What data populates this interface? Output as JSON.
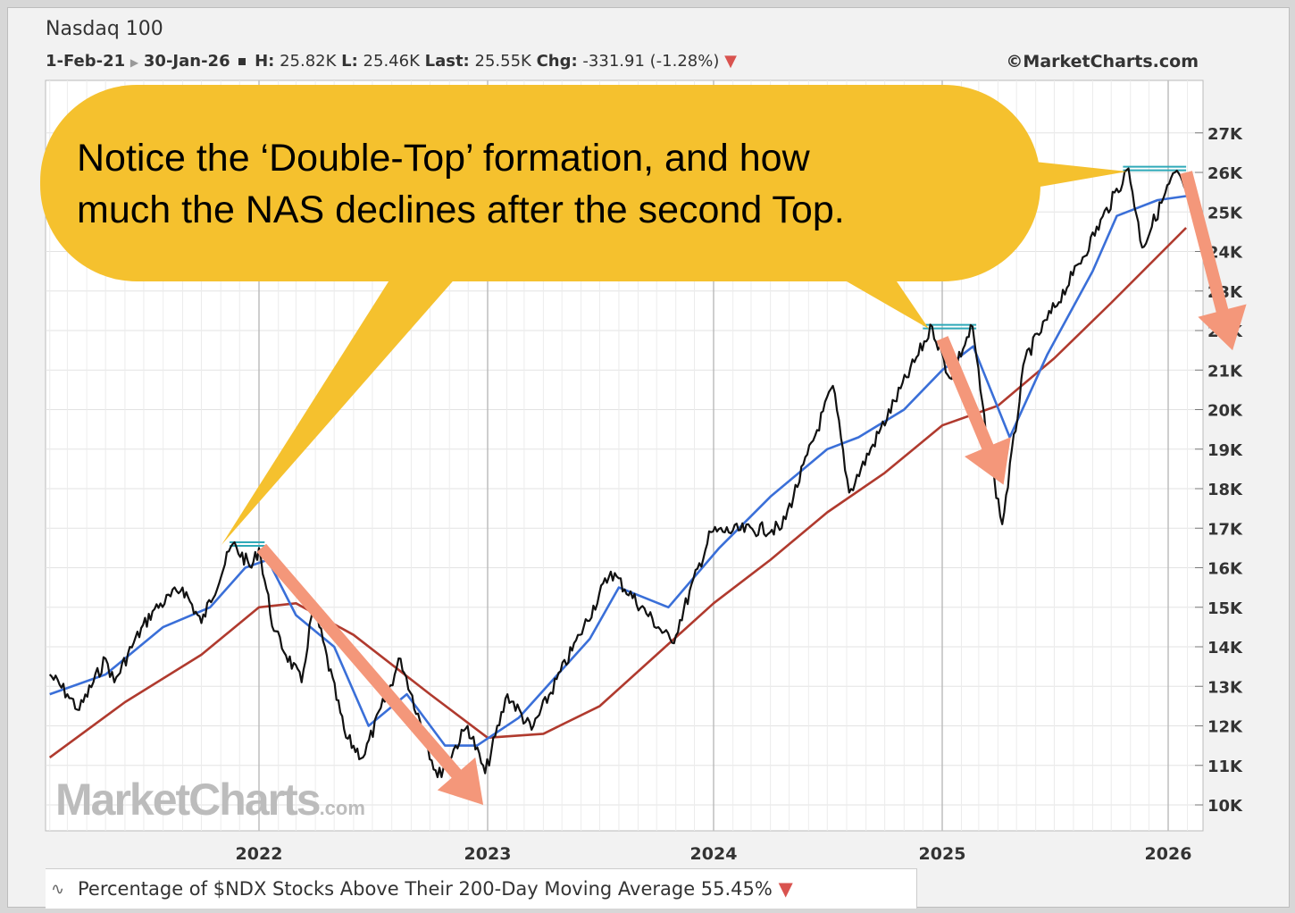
{
  "header": {
    "title": "Nasdaq 100",
    "date_start": "1-Feb-21",
    "date_end": "30-Jan-26",
    "high_label": "H:",
    "high_value": "25.82K",
    "low_label": "L:",
    "low_value": "25.46K",
    "last_label": "Last:",
    "last_value": "25.55K",
    "chg_label": "Chg:",
    "chg_value": "-331.91 (-1.28%)",
    "copyright": "©MarketCharts.com"
  },
  "callout": {
    "line1": "Notice the ‘Double-Top’ formation, and how",
    "line2": "much the NAS declines after the second Top."
  },
  "watermark": {
    "main": "MarketCharts",
    "suffix": ".com"
  },
  "footer": {
    "indicator": "Percentage of $NDX Stocks Above Their 200-Day Moving Average 55.45%"
  },
  "colors": {
    "price": "#111111",
    "ma_short": "#3a6fd8",
    "ma_long": "#b03a2e",
    "arrow": "#f4977a",
    "callout": "#f5c12e",
    "top_line": "#2fa9b8"
  },
  "chart_data": {
    "type": "line",
    "title": "Nasdaq 100",
    "x_axis": {
      "type": "date",
      "range": [
        "2021-02-01",
        "2026-01-30"
      ],
      "ticks": [
        "2022",
        "2023",
        "2024",
        "2025",
        "2026"
      ]
    },
    "y_axis": {
      "range": [
        9600,
        27600
      ],
      "ticks": [
        "10K",
        "11K",
        "12K",
        "13K",
        "14K",
        "15K",
        "16K",
        "17K",
        "18K",
        "19K",
        "20K",
        "21K",
        "22K",
        "23K",
        "24K",
        "25K",
        "26K",
        "27K"
      ]
    },
    "series": [
      {
        "role": "price",
        "points": [
          [
            "2021-02-01",
            13300
          ],
          [
            "2021-03-01",
            12800
          ],
          [
            "2021-03-20",
            12400
          ],
          [
            "2021-05-01",
            13700
          ],
          [
            "2021-05-15",
            13100
          ],
          [
            "2021-06-15",
            14100
          ],
          [
            "2021-07-15",
            14900
          ],
          [
            "2021-09-01",
            15500
          ],
          [
            "2021-10-01",
            14600
          ],
          [
            "2021-11-20",
            16600
          ],
          [
            "2021-12-20",
            16000
          ],
          [
            "2022-01-01",
            16500
          ],
          [
            "2022-01-25",
            14400
          ],
          [
            "2022-03-10",
            13100
          ],
          [
            "2022-03-29",
            15100
          ],
          [
            "2022-05-20",
            11700
          ],
          [
            "2022-06-16",
            11200
          ],
          [
            "2022-08-15",
            13700
          ],
          [
            "2022-10-13",
            10700
          ],
          [
            "2022-11-30",
            12000
          ],
          [
            "2022-12-28",
            10800
          ],
          [
            "2023-02-02",
            12800
          ],
          [
            "2023-03-13",
            11900
          ],
          [
            "2023-05-30",
            14300
          ],
          [
            "2023-07-19",
            15900
          ],
          [
            "2023-10-26",
            14100
          ],
          [
            "2023-12-28",
            16900
          ],
          [
            "2024-04-19",
            17000
          ],
          [
            "2024-07-10",
            20600
          ],
          [
            "2024-08-05",
            17900
          ],
          [
            "2024-12-16",
            22100
          ],
          [
            "2025-01-13",
            20800
          ],
          [
            "2025-02-19",
            22100
          ],
          [
            "2025-03-13",
            19300
          ],
          [
            "2025-04-08",
            17100
          ],
          [
            "2025-05-15",
            21300
          ],
          [
            "2025-07-31",
            23400
          ],
          [
            "2025-10-29",
            26100
          ],
          [
            "2025-11-20",
            24100
          ],
          [
            "2026-01-12",
            26000
          ],
          [
            "2026-01-30",
            25550
          ]
        ]
      },
      {
        "role": "ma_short",
        "points": [
          [
            "2021-02-01",
            12800
          ],
          [
            "2021-05-01",
            13300
          ],
          [
            "2021-08-01",
            14500
          ],
          [
            "2021-10-15",
            15000
          ],
          [
            "2021-12-10",
            16000
          ],
          [
            "2022-01-15",
            16200
          ],
          [
            "2022-03-01",
            14800
          ],
          [
            "2022-05-01",
            14000
          ],
          [
            "2022-06-25",
            12000
          ],
          [
            "2022-08-25",
            12800
          ],
          [
            "2022-10-25",
            11500
          ],
          [
            "2022-12-15",
            11500
          ],
          [
            "2023-02-20",
            12200
          ],
          [
            "2023-06-15",
            14200
          ],
          [
            "2023-08-01",
            15500
          ],
          [
            "2023-10-20",
            15000
          ],
          [
            "2024-01-10",
            16500
          ],
          [
            "2024-04-01",
            17800
          ],
          [
            "2024-07-01",
            19000
          ],
          [
            "2024-08-20",
            19300
          ],
          [
            "2024-11-01",
            20000
          ],
          [
            "2025-01-01",
            21000
          ],
          [
            "2025-02-20",
            21600
          ],
          [
            "2025-04-20",
            19300
          ],
          [
            "2025-06-20",
            21400
          ],
          [
            "2025-09-01",
            23500
          ],
          [
            "2025-10-10",
            24900
          ],
          [
            "2025-12-15",
            25300
          ],
          [
            "2026-01-30",
            25400
          ]
        ]
      },
      {
        "role": "ma_long",
        "points": [
          [
            "2021-02-01",
            11200
          ],
          [
            "2021-06-01",
            12600
          ],
          [
            "2021-10-01",
            13800
          ],
          [
            "2022-01-01",
            15000
          ],
          [
            "2022-03-01",
            15100
          ],
          [
            "2022-06-01",
            14300
          ],
          [
            "2022-10-01",
            12800
          ],
          [
            "2023-01-01",
            11700
          ],
          [
            "2023-04-01",
            11800
          ],
          [
            "2023-07-01",
            12500
          ],
          [
            "2023-10-01",
            13800
          ],
          [
            "2024-01-01",
            15100
          ],
          [
            "2024-04-01",
            16200
          ],
          [
            "2024-07-01",
            17400
          ],
          [
            "2024-10-01",
            18400
          ],
          [
            "2025-01-01",
            19600
          ],
          [
            "2025-04-01",
            20100
          ],
          [
            "2025-07-01",
            21300
          ],
          [
            "2025-10-01",
            22700
          ],
          [
            "2026-01-30",
            24600
          ]
        ]
      }
    ],
    "annotations": [
      {
        "type": "double_top_line",
        "x": [
          "2021-11-15",
          "2022-01-10"
        ],
        "y": 16600
      },
      {
        "type": "double_top_line",
        "x": [
          "2024-12-01",
          "2025-02-25"
        ],
        "y": 22100
      },
      {
        "type": "double_top_line",
        "x": [
          "2025-10-20",
          "2026-01-30"
        ],
        "y": 26100
      },
      {
        "type": "arrow",
        "from": [
          "2022-01-05",
          16500
        ],
        "to": [
          "2022-12-25",
          10000
        ]
      },
      {
        "type": "arrow",
        "from": [
          "2025-01-01",
          21800
        ],
        "to": [
          "2025-04-10",
          18100
        ]
      },
      {
        "type": "arrow",
        "from": [
          "2026-01-30",
          26000
        ],
        "to": [
          "2026-04-15",
          21500
        ]
      }
    ]
  }
}
